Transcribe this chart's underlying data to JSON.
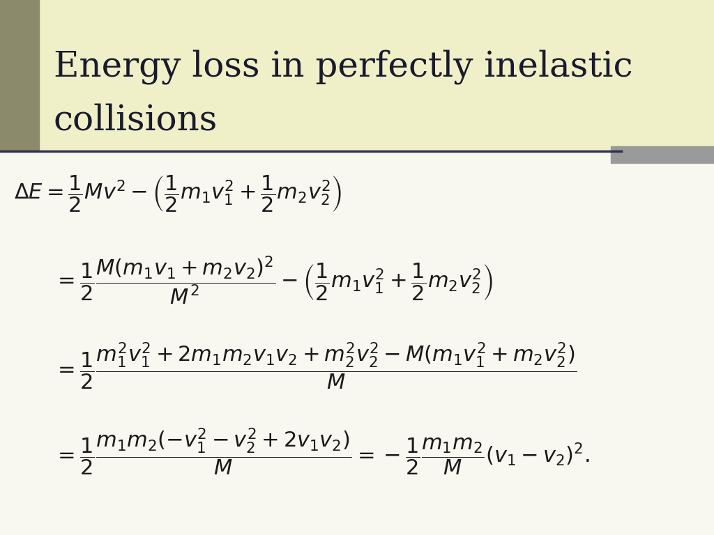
{
  "title_line1": "Energy loss in perfectly inelastic",
  "title_line2": "collisions",
  "title_fontsize": 36,
  "title_color": "#1a1a2e",
  "bg_color_title": "#f0f0c8",
  "bg_color_content": "#f8f8f0",
  "left_bar_color": "#8b8b6b",
  "separator_line_color": "#2f2f4f",
  "formula_color": "#1a1a1a",
  "formula_fontsize": 22
}
